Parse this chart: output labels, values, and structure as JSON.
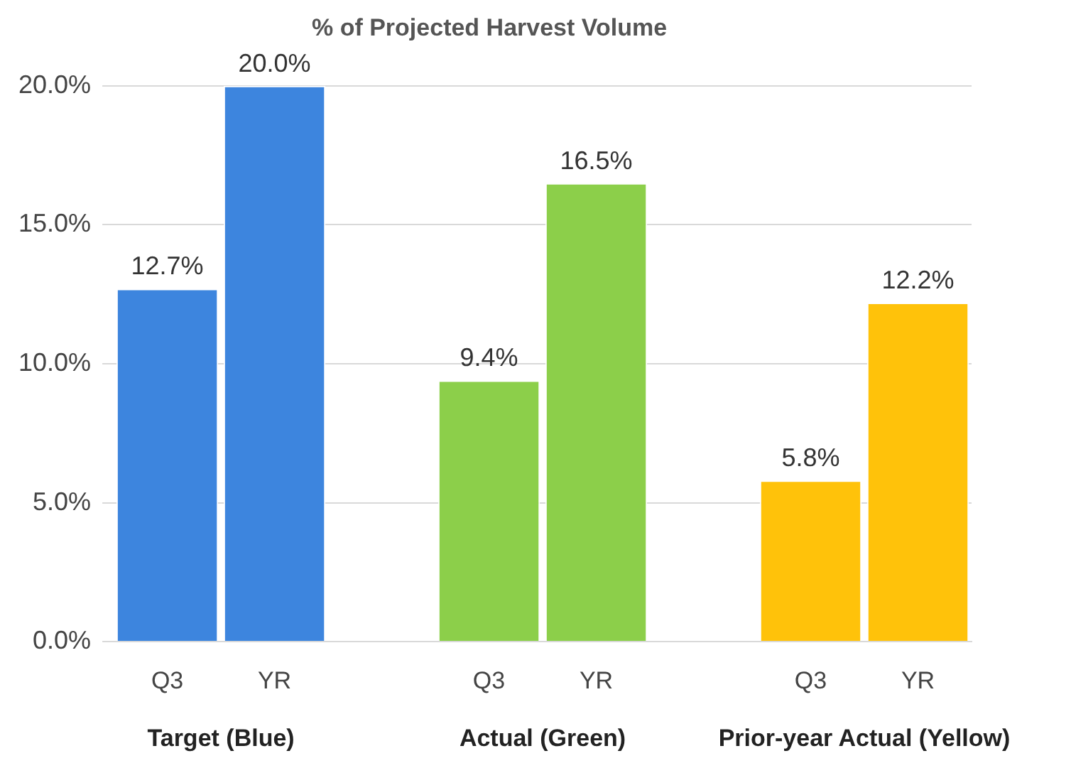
{
  "chart_data": {
    "type": "bar",
    "title": "% of Projected Harvest Volume",
    "categories": [
      "Q3",
      "YR",
      null,
      "Q3",
      "YR",
      null,
      "Q3",
      "YR"
    ],
    "values": [
      12.7,
      20.0,
      null,
      9.4,
      16.5,
      null,
      5.8,
      12.2
    ],
    "colors": [
      "#3d85de",
      "#3d85de",
      "#ffffff",
      "#8ccf4a",
      "#8ccf4a",
      "#ffffff",
      "#ffc20a",
      "#ffc20a"
    ],
    "value_labels": [
      "12.7%",
      "20.0%",
      null,
      "9.4%",
      "16.5%",
      null,
      "5.8%",
      "12.2%"
    ],
    "ylim": [
      0,
      20
    ],
    "yticks": [
      {
        "value": 0,
        "label": "0.0%"
      },
      {
        "value": 5,
        "label": "5.0%"
      },
      {
        "value": 10,
        "label": "10.0%"
      },
      {
        "value": 15,
        "label": "15.0%"
      },
      {
        "value": 20,
        "label": "20.0%"
      }
    ],
    "grid": "y",
    "legend": false,
    "annotations": [
      "Target (Blue)",
      "Actual (Green)",
      "Prior-year Actual (Yellow)"
    ]
  }
}
